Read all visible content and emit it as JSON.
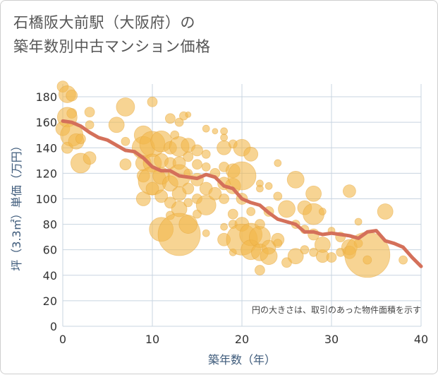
{
  "header": {
    "title_line1": "石橋阪大前駅（大阪府）の",
    "title_line2": "築年数別中古マンション価格"
  },
  "chart_data": {
    "type": "scatter",
    "title": "石橋阪大前駅（大阪府）の築年数別中古マンション価格",
    "xlabel": "築年数（年）",
    "ylabel": "坪（3.3㎡）単価（万円）",
    "xlim": [
      0,
      40
    ],
    "ylim": [
      0,
      190
    ],
    "x_ticks": [
      0,
      10,
      20,
      30,
      40
    ],
    "y_ticks": [
      0,
      20,
      40,
      60,
      80,
      100,
      120,
      140,
      160,
      180
    ],
    "grid": true,
    "note": "円の大きさは、取引のあった物件面積を示す",
    "colors": {
      "bubble": "#f2b84b",
      "trend": "#d4705a",
      "grid": "#c8d4e0",
      "axis_text": "#3d5a7a"
    },
    "bubbles": [
      {
        "x": 0,
        "y": 188,
        "s": 8
      },
      {
        "x": 0.5,
        "y": 182,
        "s": 12
      },
      {
        "x": 1,
        "y": 181,
        "s": 8
      },
      {
        "x": 1,
        "y": 167,
        "s": 7
      },
      {
        "x": 0.5,
        "y": 164,
        "s": 14
      },
      {
        "x": 0,
        "y": 155,
        "s": 10
      },
      {
        "x": 1,
        "y": 150,
        "s": 16
      },
      {
        "x": 0.5,
        "y": 140,
        "s": 8
      },
      {
        "x": 1.5,
        "y": 145,
        "s": 11
      },
      {
        "x": 2,
        "y": 128,
        "s": 14
      },
      {
        "x": 3,
        "y": 132,
        "s": 9
      },
      {
        "x": 2,
        "y": 147,
        "s": 7
      },
      {
        "x": 3,
        "y": 168,
        "s": 7
      },
      {
        "x": 3,
        "y": 158,
        "s": 6
      },
      {
        "x": 6,
        "y": 158,
        "s": 11
      },
      {
        "x": 7,
        "y": 172,
        "s": 13
      },
      {
        "x": 7,
        "y": 127,
        "s": 8
      },
      {
        "x": 7,
        "y": 145,
        "s": 6
      },
      {
        "x": 9,
        "y": 150,
        "s": 13
      },
      {
        "x": 9,
        "y": 140,
        "s": 16
      },
      {
        "x": 9,
        "y": 128,
        "s": 11
      },
      {
        "x": 9,
        "y": 118,
        "s": 9
      },
      {
        "x": 9,
        "y": 100,
        "s": 10
      },
      {
        "x": 10,
        "y": 176,
        "s": 7
      },
      {
        "x": 10,
        "y": 143,
        "s": 18
      },
      {
        "x": 10,
        "y": 128,
        "s": 13
      },
      {
        "x": 10,
        "y": 114,
        "s": 20
      },
      {
        "x": 10,
        "y": 108,
        "s": 9
      },
      {
        "x": 11,
        "y": 145,
        "s": 15
      },
      {
        "x": 11,
        "y": 130,
        "s": 10
      },
      {
        "x": 11,
        "y": 118,
        "s": 12
      },
      {
        "x": 11,
        "y": 102,
        "s": 9
      },
      {
        "x": 11,
        "y": 76,
        "s": 17
      },
      {
        "x": 12,
        "y": 163,
        "s": 7
      },
      {
        "x": 12,
        "y": 140,
        "s": 9
      },
      {
        "x": 12,
        "y": 128,
        "s": 8
      },
      {
        "x": 12,
        "y": 112,
        "s": 11
      },
      {
        "x": 12,
        "y": 97,
        "s": 8
      },
      {
        "x": 12,
        "y": 87,
        "s": 6
      },
      {
        "x": 12.5,
        "y": 150,
        "s": 6
      },
      {
        "x": 13,
        "y": 160,
        "s": 6
      },
      {
        "x": 13,
        "y": 141,
        "s": 14
      },
      {
        "x": 13,
        "y": 128,
        "s": 9
      },
      {
        "x": 13,
        "y": 118,
        "s": 16
      },
      {
        "x": 13,
        "y": 104,
        "s": 10
      },
      {
        "x": 13,
        "y": 92,
        "s": 11
      },
      {
        "x": 13,
        "y": 72,
        "s": 30
      },
      {
        "x": 13.5,
        "y": 165,
        "s": 6
      },
      {
        "x": 14,
        "y": 166,
        "s": 4
      },
      {
        "x": 14,
        "y": 142,
        "s": 10
      },
      {
        "x": 14,
        "y": 133,
        "s": 7
      },
      {
        "x": 14,
        "y": 120,
        "s": 6
      },
      {
        "x": 14,
        "y": 108,
        "s": 8
      },
      {
        "x": 14,
        "y": 97,
        "s": 6
      },
      {
        "x": 14,
        "y": 80,
        "s": 13
      },
      {
        "x": 15,
        "y": 138,
        "s": 8
      },
      {
        "x": 15,
        "y": 127,
        "s": 7
      },
      {
        "x": 15,
        "y": 115,
        "s": 9
      },
      {
        "x": 15,
        "y": 100,
        "s": 7
      },
      {
        "x": 15,
        "y": 88,
        "s": 6
      },
      {
        "x": 16,
        "y": 155,
        "s": 5
      },
      {
        "x": 16,
        "y": 135,
        "s": 6
      },
      {
        "x": 16,
        "y": 125,
        "s": 6
      },
      {
        "x": 16,
        "y": 108,
        "s": 9
      },
      {
        "x": 16,
        "y": 95,
        "s": 14
      },
      {
        "x": 16,
        "y": 73,
        "s": 5
      },
      {
        "x": 17,
        "y": 153,
        "s": 4
      },
      {
        "x": 17,
        "y": 120,
        "s": 7
      },
      {
        "x": 17,
        "y": 104,
        "s": 9
      },
      {
        "x": 18,
        "y": 153,
        "s": 5
      },
      {
        "x": 18,
        "y": 148,
        "s": 5
      },
      {
        "x": 18,
        "y": 140,
        "s": 10
      },
      {
        "x": 18,
        "y": 125,
        "s": 7
      },
      {
        "x": 18,
        "y": 112,
        "s": 9
      },
      {
        "x": 18,
        "y": 100,
        "s": 7
      },
      {
        "x": 18,
        "y": 78,
        "s": 5
      },
      {
        "x": 18,
        "y": 68,
        "s": 9
      },
      {
        "x": 19,
        "y": 143,
        "s": 6
      },
      {
        "x": 19,
        "y": 122,
        "s": 10
      },
      {
        "x": 19,
        "y": 110,
        "s": 11
      },
      {
        "x": 19,
        "y": 88,
        "s": 7
      },
      {
        "x": 19,
        "y": 80,
        "s": 6
      },
      {
        "x": 19,
        "y": 58,
        "s": 5
      },
      {
        "x": 20,
        "y": 140,
        "s": 12
      },
      {
        "x": 20,
        "y": 118,
        "s": 20
      },
      {
        "x": 20,
        "y": 100,
        "s": 8
      },
      {
        "x": 20,
        "y": 80,
        "s": 10
      },
      {
        "x": 20,
        "y": 68,
        "s": 22
      },
      {
        "x": 21,
        "y": 135,
        "s": 10
      },
      {
        "x": 21,
        "y": 90,
        "s": 6
      },
      {
        "x": 21,
        "y": 72,
        "s": 16
      },
      {
        "x": 21,
        "y": 60,
        "s": 14
      },
      {
        "x": 22,
        "y": 112,
        "s": 5
      },
      {
        "x": 22,
        "y": 108,
        "s": 5
      },
      {
        "x": 22,
        "y": 80,
        "s": 7
      },
      {
        "x": 22,
        "y": 70,
        "s": 15
      },
      {
        "x": 22,
        "y": 58,
        "s": 12
      },
      {
        "x": 22,
        "y": 44,
        "s": 7
      },
      {
        "x": 23,
        "y": 110,
        "s": 5
      },
      {
        "x": 23,
        "y": 90,
        "s": 7
      },
      {
        "x": 23,
        "y": 62,
        "s": 10
      },
      {
        "x": 23,
        "y": 55,
        "s": 12
      },
      {
        "x": 24,
        "y": 128,
        "s": 5
      },
      {
        "x": 24,
        "y": 102,
        "s": 6
      },
      {
        "x": 24,
        "y": 68,
        "s": 9
      },
      {
        "x": 24,
        "y": 65,
        "s": 6
      },
      {
        "x": 25,
        "y": 92,
        "s": 12
      },
      {
        "x": 25,
        "y": 50,
        "s": 7
      },
      {
        "x": 26,
        "y": 115,
        "s": 12
      },
      {
        "x": 26,
        "y": 80,
        "s": 6
      },
      {
        "x": 26,
        "y": 55,
        "s": 11
      },
      {
        "x": 27,
        "y": 93,
        "s": 10
      },
      {
        "x": 27,
        "y": 76,
        "s": 6
      },
      {
        "x": 27,
        "y": 60,
        "s": 6
      },
      {
        "x": 28,
        "y": 104,
        "s": 11
      },
      {
        "x": 28,
        "y": 88,
        "s": 15
      },
      {
        "x": 28,
        "y": 72,
        "s": 8
      },
      {
        "x": 28,
        "y": 58,
        "s": 6
      },
      {
        "x": 29,
        "y": 90,
        "s": 5
      },
      {
        "x": 29,
        "y": 55,
        "s": 9
      },
      {
        "x": 29,
        "y": 64,
        "s": 11
      },
      {
        "x": 30,
        "y": 75,
        "s": 5
      },
      {
        "x": 30,
        "y": 54,
        "s": 7
      },
      {
        "x": 31,
        "y": 70,
        "s": 7
      },
      {
        "x": 31,
        "y": 58,
        "s": 6
      },
      {
        "x": 32,
        "y": 106,
        "s": 9
      },
      {
        "x": 32,
        "y": 62,
        "s": 11
      },
      {
        "x": 32,
        "y": 58,
        "s": 9
      },
      {
        "x": 33,
        "y": 82,
        "s": 5
      },
      {
        "x": 33,
        "y": 65,
        "s": 6
      },
      {
        "x": 34,
        "y": 56,
        "s": 32
      },
      {
        "x": 34,
        "y": 52,
        "s": 6
      },
      {
        "x": 36,
        "y": 90,
        "s": 11
      },
      {
        "x": 38,
        "y": 52,
        "s": 6
      }
    ],
    "trend": {
      "x": [
        0,
        1,
        2,
        3,
        4,
        5,
        6,
        7,
        8,
        9,
        10,
        11,
        12,
        13,
        14,
        15,
        16,
        17,
        18,
        19,
        20,
        21,
        22,
        23,
        24,
        25,
        26,
        27,
        28,
        29,
        30,
        31,
        32,
        33,
        34,
        35,
        36,
        37,
        38,
        39,
        40
      ],
      "y": [
        161,
        160,
        157,
        152,
        148,
        146,
        142,
        138,
        137,
        132,
        125,
        122,
        122,
        118,
        117,
        116,
        119,
        117,
        110,
        108,
        100,
        97,
        95,
        89,
        84,
        82,
        80,
        74,
        74,
        72,
        73,
        72,
        71,
        69,
        74,
        75,
        67,
        65,
        62,
        54,
        47
      ]
    }
  }
}
